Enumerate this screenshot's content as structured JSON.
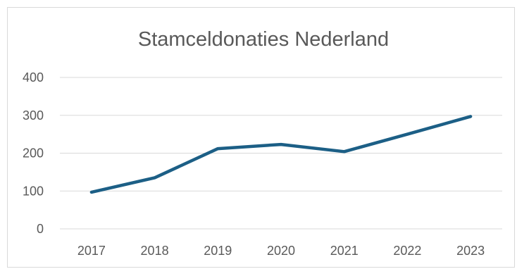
{
  "chart_data": {
    "type": "line",
    "title": "Stamceldonaties Nederland",
    "xlabel": "",
    "ylabel": "",
    "categories": [
      "2017",
      "2018",
      "2019",
      "2020",
      "2021",
      "2022",
      "2023"
    ],
    "series": [
      {
        "values": [
          97,
          135,
          212,
          223,
          204,
          250,
          297
        ]
      }
    ],
    "ylim": [
      0,
      400
    ],
    "yticks": [
      0,
      100,
      200,
      300,
      400
    ],
    "grid": true,
    "legend": "none",
    "colors": {
      "series": "#1c5f86",
      "grid": "#d9d9d9",
      "text": "#595959"
    }
  }
}
